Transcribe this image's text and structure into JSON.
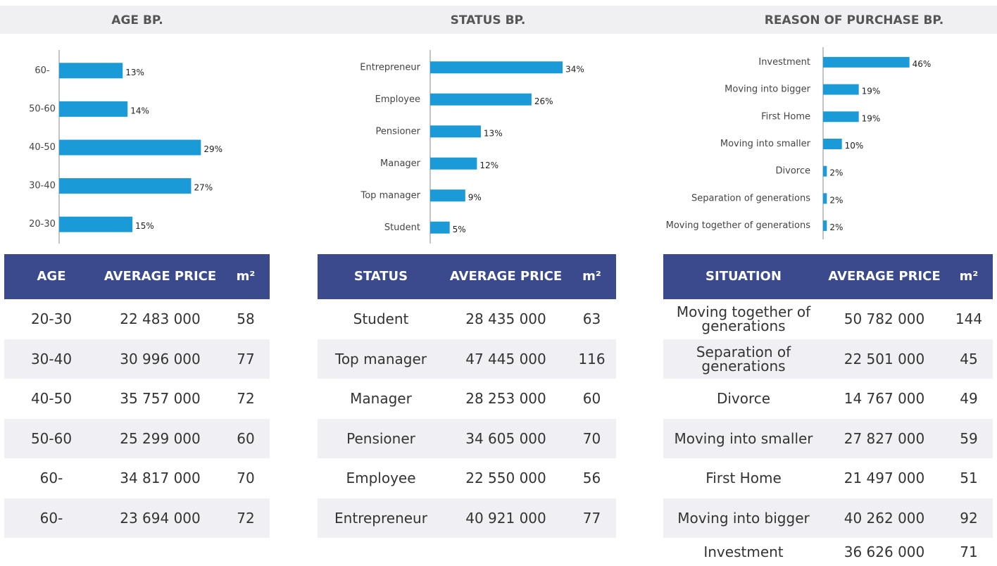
{
  "chart_data": [
    {
      "type": "bar",
      "title": "AGE BP.",
      "categories": [
        "60-",
        "50-60",
        "40-50",
        "30-40",
        "20-30"
      ],
      "values": [
        13,
        14,
        29,
        27,
        15
      ],
      "value_labels": [
        "13%",
        "14%",
        "29%",
        "27%",
        "15%"
      ],
      "color": "#1a9ad6",
      "xlim": [
        0,
        35
      ]
    },
    {
      "type": "bar",
      "title": "STATUS BP.",
      "categories": [
        "Entrepreneur",
        "Employee",
        "Pensioner",
        "Manager",
        "Top manager",
        "Student"
      ],
      "values": [
        34,
        26,
        13,
        12,
        9,
        5
      ],
      "value_labels": [
        "34%",
        "26%",
        "13%",
        "12%",
        "9%",
        "5%"
      ],
      "color": "#1a9ad6",
      "xlim": [
        0,
        45
      ]
    },
    {
      "type": "bar",
      "title": "REASON OF PURCHASE BP.",
      "categories": [
        "Investment",
        "Moving into bigger",
        "First Home",
        "Moving into smaller",
        "Divorce",
        "Separation of generations",
        "Moving together of generations"
      ],
      "values": [
        46,
        19,
        19,
        10,
        2,
        2,
        2
      ],
      "value_labels": [
        "46%",
        "19%",
        "19%",
        "10%",
        "2%",
        "2%",
        "2%"
      ],
      "color": "#1a9ad6",
      "xlim": [
        0,
        90
      ]
    }
  ],
  "tables": [
    {
      "columns": [
        "AGE",
        "AVERAGE PRICE",
        "m²"
      ],
      "rows": [
        [
          "20-30",
          "22 483 000",
          "58"
        ],
        [
          "30-40",
          "30 996 000",
          "77"
        ],
        [
          "40-50",
          "35 757 000",
          "72"
        ],
        [
          "50-60",
          "25 299 000",
          "60"
        ],
        [
          "60-",
          "34 817 000",
          "70"
        ],
        [
          "60-",
          "23 694 000",
          "72"
        ]
      ]
    },
    {
      "columns": [
        "STATUS",
        "AVERAGE PRICE",
        "m²"
      ],
      "rows": [
        [
          "Student",
          "28 435 000",
          "63"
        ],
        [
          "Top manager",
          "47 445 000",
          "116"
        ],
        [
          "Manager",
          "28 253 000",
          "60"
        ],
        [
          "Pensioner",
          "34 605 000",
          "70"
        ],
        [
          "Employee",
          "22 550 000",
          "56"
        ],
        [
          "Entrepreneur",
          "40 921 000",
          "77"
        ]
      ]
    },
    {
      "columns": [
        "SITUATION",
        "AVERAGE PRICE",
        "m²"
      ],
      "rows": [
        [
          "Moving together of generations",
          "50 782 000",
          "144"
        ],
        [
          "Separation of generations",
          "22 501 000",
          "45"
        ],
        [
          "Divorce",
          "14 767 000",
          "49"
        ],
        [
          "Moving into smaller",
          "27 827 000",
          "59"
        ],
        [
          "First Home",
          "21 497 000",
          "51"
        ],
        [
          "Moving into bigger",
          "40 262 000",
          "92"
        ],
        [
          "Investment",
          "36 626 000",
          "71"
        ]
      ]
    }
  ]
}
